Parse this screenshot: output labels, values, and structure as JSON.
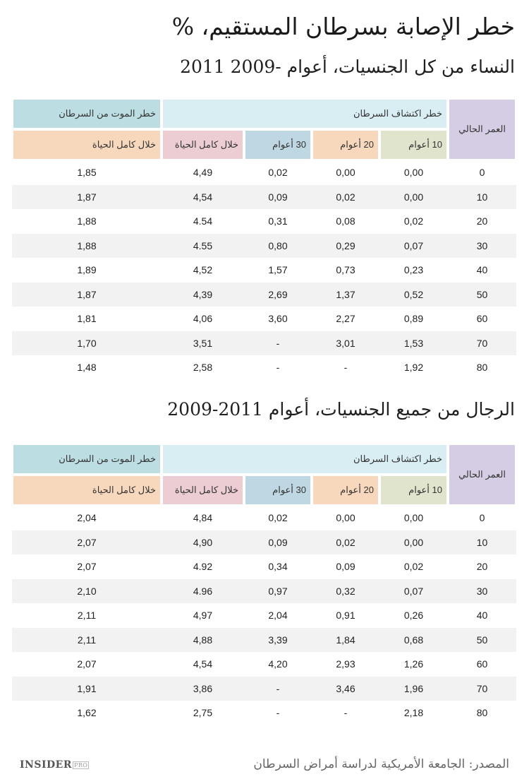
{
  "title": "خطر الإصابة بسرطان المستقيم، %",
  "header": {
    "age": "العمر الحالي",
    "detection_group": "خطر اكتشاف السرطان",
    "death_group": "خطر الموت من السرطان",
    "y10": "10 أعوام",
    "y20": "20 أعوام",
    "y30": "30 أعوام",
    "lifetime": "خلال كامل الحياة",
    "death_lifetime": "خلال كامل الحياة"
  },
  "source": "المصدر: الجامعة الأمريكية لدراسة أمراض السرطان",
  "logo": {
    "main": "INSIDER",
    "sub": "PRO"
  },
  "chart_data": [
    {
      "type": "table",
      "title": "النساء من كل الجنسيات، أعوام -2009 2011",
      "columns": [
        "العمر الحالي",
        "10 أعوام",
        "20 أعوام",
        "30 أعوام",
        "خلال كامل الحياة",
        "خلال كامل الحياة"
      ],
      "rows": [
        [
          "0",
          "0,00",
          "0,00",
          "0,02",
          "4,49",
          "1,85"
        ],
        [
          "10",
          "0,00",
          "0,02",
          "0,09",
          "4,54",
          "1,87"
        ],
        [
          "20",
          "0,02",
          "0,08",
          "0,31",
          "4.54",
          "1,88"
        ],
        [
          "30",
          "0,07",
          "0,29",
          "0,80",
          "4.55",
          "1,88"
        ],
        [
          "40",
          "0,23",
          "0,73",
          "1,57",
          "4,52",
          "1,89"
        ],
        [
          "50",
          "0,52",
          "1,37",
          "2,69",
          "4,39",
          "1,87"
        ],
        [
          "60",
          "0,89",
          "2,27",
          "3,60",
          "4,06",
          "1,81"
        ],
        [
          "70",
          "1,53",
          "3,01",
          "-",
          "3,51",
          "1,70"
        ],
        [
          "80",
          "1,92",
          "-",
          "-",
          "2,58",
          "1,48"
        ]
      ]
    },
    {
      "type": "table",
      "title": "الرجال من جميع الجنسيات، أعوام 2011-2009",
      "columns": [
        "العمر الحالي",
        "10 أعوام",
        "20 أعوام",
        "30 أعوام",
        "خلال كامل الحياة",
        "خلال كامل الحياة"
      ],
      "rows": [
        [
          "0",
          "0,00",
          "0,00",
          "0,02",
          "4,84",
          "2,04"
        ],
        [
          "10",
          "0,00",
          "0,02",
          "0,09",
          "4,90",
          "2,07"
        ],
        [
          "20",
          "0,02",
          "0,09",
          "0,34",
          "4.92",
          "2,07"
        ],
        [
          "30",
          "0,07",
          "0,32",
          "0,97",
          "4.96",
          "2,10"
        ],
        [
          "40",
          "0,26",
          "0,91",
          "2,04",
          "4,97",
          "2,11"
        ],
        [
          "50",
          "0,68",
          "1,84",
          "3,39",
          "4,88",
          "2,11"
        ],
        [
          "60",
          "1,26",
          "2,93",
          "4,20",
          "4,54",
          "2,07"
        ],
        [
          "70",
          "1,96",
          "3,46",
          "-",
          "3,86",
          "1,91"
        ],
        [
          "80",
          "2,18",
          "-",
          "-",
          "2,75",
          "1,62"
        ]
      ]
    }
  ]
}
